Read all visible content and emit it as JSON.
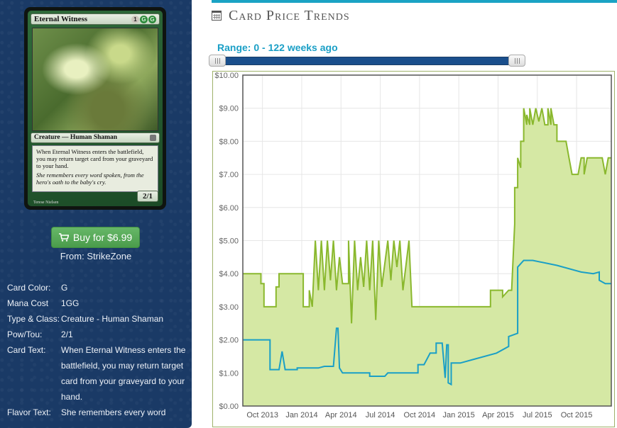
{
  "card": {
    "name": "Eternal Witness",
    "mana": [
      "1",
      "G",
      "G"
    ],
    "type_line": "Creature — Human Shaman",
    "rules_text": "When Eternal Witness enters the battlefield, you may return target card from your graveyard to your hand.",
    "flavor_text": "She remembers every word spoken, from the hero's oath to the baby's cry.",
    "pt": "2/1",
    "artist": "Terese Nielsen"
  },
  "buy": {
    "label": "Buy for $6.99",
    "from": "From: StrikeZone"
  },
  "details": [
    {
      "key": "Card Color:",
      "value": "G"
    },
    {
      "key": "Mana Cost",
      "value": "1GG"
    },
    {
      "key": "Type & Class:",
      "value": "Creature - Human Shaman"
    },
    {
      "key": "Pow/Tou:",
      "value": "2/1"
    },
    {
      "key": "Card Text:",
      "value": "When Eternal Witness enters the battlefield, you may return target card from your graveyard to your hand."
    },
    {
      "key": "Flavor Text:",
      "value": "She remembers every word"
    }
  ],
  "header": {
    "title": "Card Price Trends",
    "icon": "calendar-icon"
  },
  "range": {
    "label": "Range: 0 - 122 weeks ago"
  },
  "colors": {
    "high_series": "#8ab82e",
    "high_fill": "#d5e8a4",
    "low_series": "#1a9fc6",
    "accent": "#1aa3c4"
  },
  "chart_data": {
    "type": "line",
    "title": "",
    "xlabel": "",
    "ylabel": "",
    "ylim": [
      0,
      10
    ],
    "yticks": [
      "$0.00",
      "$1.00",
      "$2.00",
      "$3.00",
      "$4.00",
      "$5.00",
      "$6.00",
      "$7.00",
      "$8.00",
      "$9.00",
      "$10.00"
    ],
    "xticks": [
      "Oct 2013",
      "Jan 2014",
      "Apr 2014",
      "Jul 2014",
      "Oct 2014",
      "Jan 2015",
      "Apr 2015",
      "Jul 2015",
      "Oct 2015"
    ],
    "xrange_weeks_from_start": [
      0,
      122
    ],
    "grid": true,
    "series": [
      {
        "values": [
          [
            0,
            4.0
          ],
          [
            6,
            4.0
          ],
          [
            6,
            3.7
          ],
          [
            7,
            3.7
          ],
          [
            7,
            3.0
          ],
          [
            11,
            3.0
          ],
          [
            11,
            3.6
          ],
          [
            12,
            3.6
          ],
          [
            12,
            4.0
          ],
          [
            20,
            4.0
          ],
          [
            20,
            3.0
          ],
          [
            22,
            3.0
          ],
          [
            22,
            3.5
          ],
          [
            23,
            3.0
          ],
          [
            24,
            5.0
          ],
          [
            25,
            3.5
          ],
          [
            26,
            5.0
          ],
          [
            27,
            3.5
          ],
          [
            28,
            5.0
          ],
          [
            29,
            3.8
          ],
          [
            30,
            5.0
          ],
          [
            31,
            3.5
          ],
          [
            32,
            4.5
          ],
          [
            33,
            3.7
          ],
          [
            35,
            3.7
          ],
          [
            35,
            5.0
          ],
          [
            36,
            2.5
          ],
          [
            37,
            5.0
          ],
          [
            38,
            3.5
          ],
          [
            39,
            4.5
          ],
          [
            40,
            3.6
          ],
          [
            41,
            5.0
          ],
          [
            42,
            3.5
          ],
          [
            43,
            5.0
          ],
          [
            44,
            2.6
          ],
          [
            45,
            5.0
          ],
          [
            46,
            3.6
          ],
          [
            48,
            5.0
          ],
          [
            49,
            3.8
          ],
          [
            50,
            5.0
          ],
          [
            51,
            4.2
          ],
          [
            52,
            5.0
          ],
          [
            53,
            3.5
          ],
          [
            55,
            5.0
          ],
          [
            56,
            3.0
          ],
          [
            70,
            3.0
          ],
          [
            72,
            3.0
          ],
          [
            82,
            3.0
          ],
          [
            82,
            3.5
          ],
          [
            86,
            3.5
          ],
          [
            86,
            3.3
          ],
          [
            88,
            3.5
          ],
          [
            89,
            3.5
          ],
          [
            90,
            5.5
          ],
          [
            90,
            6.6
          ],
          [
            91,
            6.6
          ],
          [
            91,
            7.5
          ],
          [
            92,
            7.2
          ],
          [
            92,
            8.0
          ],
          [
            93,
            8.0
          ],
          [
            93,
            9.0
          ],
          [
            94,
            8.5
          ],
          [
            94,
            8.8
          ],
          [
            95,
            8.5
          ],
          [
            95,
            9.0
          ],
          [
            96,
            8.5
          ],
          [
            97,
            9.0
          ],
          [
            98,
            8.6
          ],
          [
            99,
            9.0
          ],
          [
            100,
            8.5
          ],
          [
            101,
            8.5
          ],
          [
            101,
            9.0
          ],
          [
            102,
            8.5
          ],
          [
            102,
            9.0
          ],
          [
            103,
            8.5
          ],
          [
            104,
            8.5
          ],
          [
            104,
            8.0
          ],
          [
            107,
            8.0
          ],
          [
            108,
            7.5
          ],
          [
            109,
            7.0
          ],
          [
            111,
            7.0
          ],
          [
            112,
            7.5
          ],
          [
            113,
            7.5
          ],
          [
            113,
            7.0
          ],
          [
            114,
            7.5
          ],
          [
            119,
            7.5
          ],
          [
            120,
            7.0
          ],
          [
            121,
            7.5
          ],
          [
            122,
            7.5
          ]
        ]
      },
      {
        "values": [
          [
            0,
            2.0
          ],
          [
            9,
            2.0
          ],
          [
            9,
            1.1
          ],
          [
            12,
            1.1
          ],
          [
            13,
            1.65
          ],
          [
            14,
            1.1
          ],
          [
            18,
            1.1
          ],
          [
            18,
            1.15
          ],
          [
            25,
            1.15
          ],
          [
            27,
            1.2
          ],
          [
            30,
            1.2
          ],
          [
            31,
            2.35
          ],
          [
            31.5,
            2.35
          ],
          [
            32,
            1.15
          ],
          [
            33,
            1.0
          ],
          [
            42,
            1.0
          ],
          [
            42,
            0.9
          ],
          [
            47,
            0.9
          ],
          [
            48,
            1.0
          ],
          [
            58,
            1.0
          ],
          [
            58,
            1.25
          ],
          [
            60,
            1.25
          ],
          [
            62,
            1.6
          ],
          [
            64,
            1.6
          ],
          [
            64,
            1.9
          ],
          [
            66,
            1.9
          ],
          [
            67,
            0.85
          ],
          [
            67.5,
            1.85
          ],
          [
            68,
            1.85
          ],
          [
            68,
            0.7
          ],
          [
            69,
            0.65
          ],
          [
            69,
            1.3
          ],
          [
            72,
            1.3
          ],
          [
            76,
            1.4
          ],
          [
            84,
            1.6
          ],
          [
            88,
            1.8
          ],
          [
            88,
            2.1
          ],
          [
            91,
            2.2
          ],
          [
            91,
            4.2
          ],
          [
            93,
            4.4
          ],
          [
            96,
            4.4
          ],
          [
            104,
            4.25
          ],
          [
            112,
            4.05
          ],
          [
            116,
            4.0
          ],
          [
            118,
            4.05
          ],
          [
            118,
            3.8
          ],
          [
            120,
            3.7
          ],
          [
            122,
            3.7
          ]
        ]
      }
    ]
  }
}
